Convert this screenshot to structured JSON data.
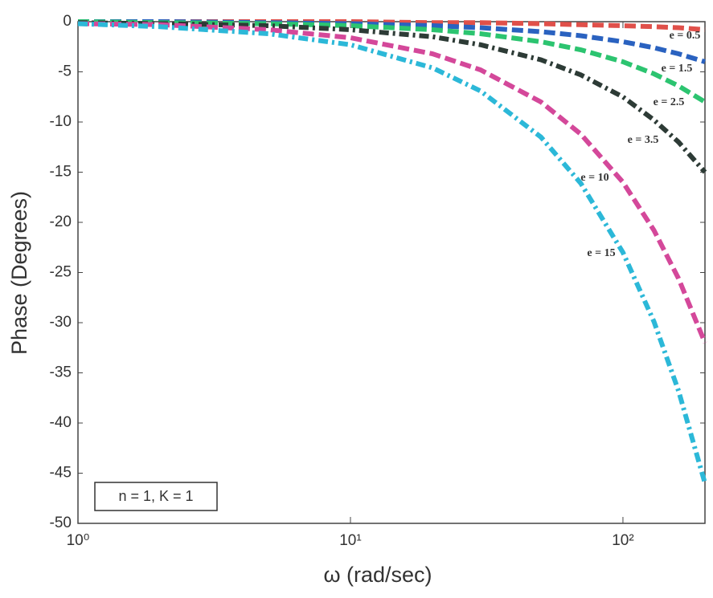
{
  "chart_data": {
    "type": "line",
    "x_label": "ω (rad/sec)",
    "y_label": "Phase (Degrees)",
    "x_scale": "log",
    "x": [
      1,
      2,
      5,
      10,
      20,
      30,
      50,
      70,
      100,
      130,
      160,
      200
    ],
    "xlim": [
      1,
      200
    ],
    "xticks": [
      {
        "value": 1,
        "label": "10⁰"
      },
      {
        "value": 10,
        "label": "10¹"
      },
      {
        "value": 100,
        "label": "10²"
      }
    ],
    "ylim": [
      -50,
      0
    ],
    "yticks": [
      0,
      -5,
      -10,
      -15,
      -20,
      -25,
      -30,
      -35,
      -40,
      -45,
      -50
    ],
    "series": [
      {
        "name": "e = 0.5",
        "color": "#e0504a",
        "line_style": "dashed",
        "values": [
          0,
          0,
          0,
          0,
          -0.1,
          -0.1,
          -0.2,
          -0.3,
          -0.4,
          -0.5,
          -0.6,
          -0.8
        ]
      },
      {
        "name": "e = 1.5",
        "color": "#2a62c0",
        "line_style": "dashed",
        "values": [
          0,
          0,
          -0.1,
          -0.2,
          -0.4,
          -0.6,
          -1,
          -1.4,
          -2,
          -2.6,
          -3.2,
          -4
        ]
      },
      {
        "name": "e = 2.5",
        "color": "#2cc470",
        "line_style": "dashed",
        "values": [
          0,
          -0.1,
          -0.2,
          -0.4,
          -0.8,
          -1.2,
          -2,
          -2.8,
          -4,
          -5.2,
          -6.4,
          -8
        ]
      },
      {
        "name": "e = 3.5",
        "color": "#2d3b36",
        "line_style": "dashdot",
        "values": [
          -0.1,
          -0.2,
          -0.4,
          -0.8,
          -1.5,
          -2.3,
          -3.8,
          -5.3,
          -7.5,
          -9.8,
          -12,
          -15
        ]
      },
      {
        "name": "e = 10",
        "color": "#d4489a",
        "line_style": "dashed",
        "values": [
          -0.2,
          -0.3,
          -0.8,
          -1.6,
          -3.2,
          -4.8,
          -8,
          -11.2,
          -16,
          -20.8,
          -25.6,
          -32
        ]
      },
      {
        "name": "e = 15",
        "color": "#2cb8d8",
        "line_style": "dashdot",
        "values": [
          -0.2,
          -0.5,
          -1.2,
          -2.3,
          -4.6,
          -6.9,
          -11.5,
          -16.1,
          -23,
          -29.9,
          -36.8,
          -46
        ]
      }
    ],
    "annotation": "n = 1, K = 1"
  }
}
